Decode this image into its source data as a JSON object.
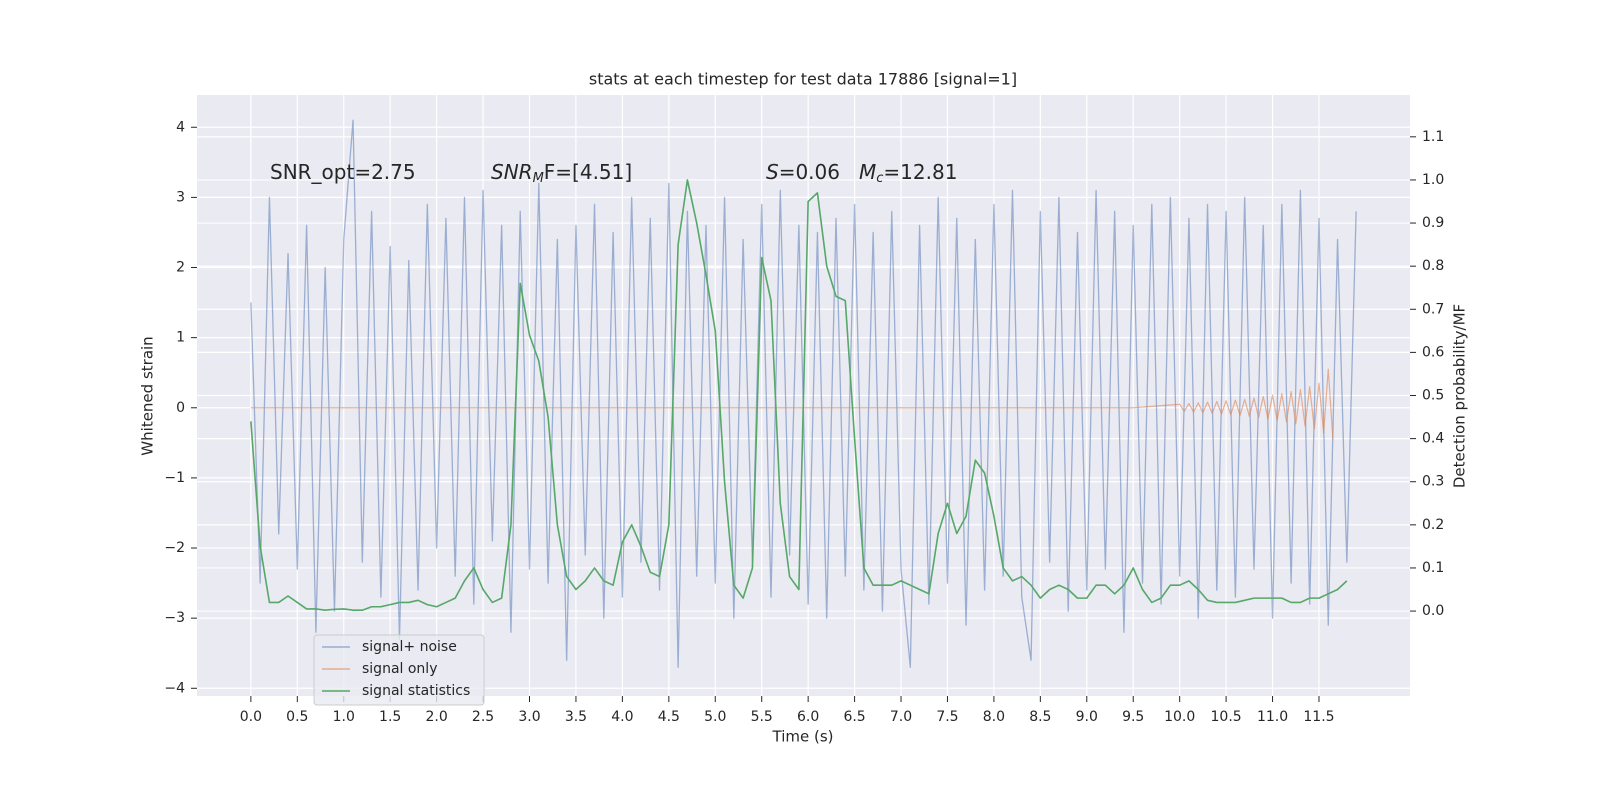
{
  "chart_data": {
    "type": "line",
    "title": "stats at each timestep for test data 17886 [signal=1]",
    "xlabel": "Time (s)",
    "ylabel": "Whitened strain",
    "y2label": "Detection probability/MF",
    "annotations": [
      {
        "main": "SNR_opt=2.75"
      },
      {
        "main": "SNR",
        "sub": "M",
        "tail": "F=[4.51]"
      },
      {
        "main": "S",
        "tail": "=0.06"
      },
      {
        "main": "M",
        "sub": "c",
        "tail": "=12.81"
      }
    ],
    "xlim": [
      -0.58,
      12.48
    ],
    "ylim": [
      -4.11,
      4.46
    ],
    "y2lim": [
      -0.197,
      1.197
    ],
    "xticks": [
      {
        "value": 0,
        "label": "0.0"
      },
      0.5,
      {
        "value": 1,
        "label": "1.0"
      },
      1.5,
      {
        "value": 2,
        "label": "2.0"
      },
      2.5,
      {
        "value": 3,
        "label": "3.0"
      },
      3.5,
      {
        "value": 4,
        "label": "4.0"
      },
      4.5,
      {
        "value": 5,
        "label": "5.0"
      },
      5.5,
      {
        "value": 6,
        "label": "6.0"
      },
      6.5,
      {
        "value": 7,
        "label": "7.0"
      },
      7.5,
      {
        "value": 8,
        "label": "8.0"
      },
      8.5,
      {
        "value": 9,
        "label": "9.0"
      },
      9.5,
      {
        "value": 10,
        "label": "10.0"
      },
      10.5,
      {
        "value": 11,
        "label": "11.0"
      },
      11.5
    ],
    "yticks": [
      {
        "value": -4,
        "label": "−4"
      },
      {
        "value": -3,
        "label": "−3"
      },
      {
        "value": -2,
        "label": "−2"
      },
      {
        "value": -1,
        "label": "−1"
      },
      0,
      1,
      2,
      3,
      4
    ],
    "y2ticks": [
      {
        "value": 0,
        "label": "0.0"
      },
      0.1,
      0.2,
      0.3,
      0.4,
      0.5,
      0.6,
      0.7,
      0.8,
      0.9,
      {
        "value": 1,
        "label": "1.0"
      },
      1.1
    ],
    "grid": true,
    "legend": "lower left",
    "series": [
      {
        "name": "signal+ noise",
        "color": "#4c72b0",
        "x": [
          0.0,
          0.1,
          0.2,
          0.3,
          0.4,
          0.5,
          0.6,
          0.7,
          0.8,
          0.9,
          1.0,
          1.1,
          1.2,
          1.3,
          1.4,
          1.5,
          1.6,
          1.7,
          1.8,
          1.9,
          2.0,
          2.1,
          2.2,
          2.3,
          2.4,
          2.5,
          2.6,
          2.7,
          2.8,
          2.9,
          3.0,
          3.1,
          3.2,
          3.3,
          3.4,
          3.5,
          3.6,
          3.7,
          3.8,
          3.9,
          4.0,
          4.1,
          4.2,
          4.3,
          4.4,
          4.5,
          4.6,
          4.7,
          4.8,
          4.9,
          5.0,
          5.1,
          5.2,
          5.3,
          5.4,
          5.5,
          5.6,
          5.7,
          5.8,
          5.9,
          6.0,
          6.1,
          6.2,
          6.3,
          6.4,
          6.5,
          6.6,
          6.7,
          6.8,
          6.9,
          7.0,
          7.1,
          7.2,
          7.3,
          7.4,
          7.5,
          7.6,
          7.7,
          7.8,
          7.9,
          8.0,
          8.1,
          8.2,
          8.3,
          8.4,
          8.5,
          8.6,
          8.7,
          8.8,
          8.9,
          9.0,
          9.1,
          9.2,
          9.3,
          9.4,
          9.5,
          9.6,
          9.7,
          9.8,
          9.9,
          10.0,
          10.1,
          10.2,
          10.3,
          10.4,
          10.5,
          10.6,
          10.7,
          10.8,
          10.9,
          11.0,
          11.1,
          11.2,
          11.3,
          11.4,
          11.5,
          11.6,
          11.7,
          11.8,
          11.9
        ],
        "values": [
          1.5,
          -2.5,
          3.0,
          -1.8,
          2.2,
          -2.3,
          2.6,
          -3.2,
          2.0,
          -2.9,
          2.4,
          4.1,
          -2.2,
          2.8,
          -2.7,
          2.3,
          -3.3,
          2.1,
          -2.6,
          2.9,
          -2.0,
          2.7,
          -2.4,
          3.0,
          -2.8,
          3.1,
          -1.9,
          2.6,
          -3.2,
          2.8,
          -2.3,
          3.2,
          -2.5,
          2.4,
          -3.6,
          2.6,
          -2.1,
          2.9,
          -3.0,
          2.5,
          -2.7,
          3.0,
          -2.2,
          2.7,
          -2.6,
          3.2,
          -3.7,
          2.8,
          -2.4,
          2.6,
          -2.5,
          3.0,
          -3.0,
          2.4,
          -2.2,
          2.9,
          -2.7,
          3.1,
          -2.1,
          2.6,
          -2.8,
          2.5,
          -3.0,
          2.7,
          -2.4,
          2.9,
          -2.6,
          2.5,
          -2.9,
          2.8,
          -2.3,
          -3.7,
          2.6,
          -2.8,
          3.0,
          -2.5,
          2.7,
          -3.1,
          2.4,
          -2.6,
          2.9,
          -2.4,
          3.1,
          -2.7,
          -3.6,
          2.8,
          -2.2,
          3.0,
          -2.9,
          2.5,
          -2.6,
          3.1,
          -2.3,
          2.8,
          -3.2,
          2.6,
          -2.5,
          2.9,
          -2.8,
          3.0,
          -2.4,
          2.7,
          -3.0,
          2.9,
          -2.6,
          2.8,
          -2.7,
          3.0,
          -2.3,
          2.6,
          -3.0,
          2.9,
          -2.5,
          3.1,
          -2.8,
          2.7,
          -3.1,
          2.4,
          -2.2,
          2.8
        ]
      },
      {
        "name": "signal only",
        "color": "#dd8452",
        "x": [
          0,
          9.0,
          9.5,
          10.0,
          10.05,
          10.1,
          10.15,
          10.2,
          10.25,
          10.3,
          10.35,
          10.4,
          10.45,
          10.5,
          10.55,
          10.6,
          10.65,
          10.7,
          10.75,
          10.8,
          10.85,
          10.9,
          10.95,
          11.0,
          11.05,
          11.1,
          11.15,
          11.2,
          11.25,
          11.3,
          11.35,
          11.4,
          11.45,
          11.5,
          11.55,
          11.6,
          11.65
        ],
        "values": [
          0,
          0,
          0,
          0.05,
          -0.05,
          0.06,
          -0.06,
          0.07,
          -0.07,
          0.08,
          -0.08,
          0.09,
          -0.09,
          0.1,
          -0.1,
          0.11,
          -0.11,
          0.12,
          -0.12,
          0.14,
          -0.14,
          0.16,
          -0.16,
          0.18,
          -0.18,
          0.2,
          -0.2,
          0.23,
          -0.23,
          0.26,
          -0.26,
          0.3,
          -0.3,
          0.35,
          -0.36,
          0.55,
          -0.45
        ]
      },
      {
        "name": "signal statistics",
        "color": "#55a868",
        "axis": "y2",
        "x": [
          0.0,
          0.1,
          0.2,
          0.3,
          0.4,
          0.5,
          0.6,
          0.7,
          0.8,
          0.9,
          1.0,
          1.1,
          1.2,
          1.3,
          1.4,
          1.5,
          1.6,
          1.7,
          1.8,
          1.9,
          2.0,
          2.1,
          2.2,
          2.3,
          2.4,
          2.5,
          2.6,
          2.7,
          2.8,
          2.9,
          3.0,
          3.1,
          3.2,
          3.3,
          3.4,
          3.5,
          3.6,
          3.7,
          3.8,
          3.9,
          4.0,
          4.1,
          4.2,
          4.3,
          4.4,
          4.5,
          4.6,
          4.7,
          4.8,
          4.9,
          5.0,
          5.1,
          5.2,
          5.3,
          5.4,
          5.5,
          5.6,
          5.7,
          5.8,
          5.9,
          6.0,
          6.1,
          6.2,
          6.3,
          6.4,
          6.5,
          6.6,
          6.7,
          6.8,
          6.9,
          7.0,
          7.1,
          7.2,
          7.3,
          7.4,
          7.5,
          7.6,
          7.7,
          7.8,
          7.9,
          8.0,
          8.1,
          8.2,
          8.3,
          8.4,
          8.5,
          8.6,
          8.7,
          8.8,
          8.9,
          9.0,
          9.1,
          9.2,
          9.3,
          9.4,
          9.5,
          9.6,
          9.7,
          9.8,
          9.9,
          10.0,
          10.1,
          10.2,
          10.3,
          10.4,
          10.5,
          10.6,
          10.7,
          10.8,
          10.9,
          11.0,
          11.1,
          11.2,
          11.3,
          11.4,
          11.5,
          11.6,
          11.7,
          11.8
        ],
        "values": [
          0.44,
          0.15,
          0.02,
          0.02,
          0.035,
          0.02,
          0.005,
          0.005,
          0.002,
          0.004,
          0.005,
          0.002,
          0.002,
          0.01,
          0.01,
          0.015,
          0.02,
          0.02,
          0.025,
          0.015,
          0.01,
          0.02,
          0.03,
          0.07,
          0.1,
          0.05,
          0.02,
          0.03,
          0.2,
          0.76,
          0.64,
          0.58,
          0.45,
          0.2,
          0.08,
          0.05,
          0.07,
          0.1,
          0.07,
          0.06,
          0.16,
          0.2,
          0.15,
          0.09,
          0.08,
          0.2,
          0.85,
          1.0,
          0.9,
          0.78,
          0.65,
          0.3,
          0.06,
          0.03,
          0.1,
          0.82,
          0.72,
          0.25,
          0.08,
          0.05,
          0.95,
          0.97,
          0.8,
          0.73,
          0.72,
          0.4,
          0.1,
          0.06,
          0.06,
          0.06,
          0.07,
          0.06,
          0.05,
          0.04,
          0.18,
          0.25,
          0.18,
          0.22,
          0.35,
          0.32,
          0.22,
          0.1,
          0.07,
          0.08,
          0.06,
          0.03,
          0.05,
          0.06,
          0.05,
          0.03,
          0.03,
          0.06,
          0.06,
          0.04,
          0.06,
          0.1,
          0.05,
          0.02,
          0.03,
          0.06,
          0.06,
          0.07,
          0.05,
          0.025,
          0.02,
          0.02,
          0.02,
          0.025,
          0.03,
          0.03,
          0.03,
          0.03,
          0.02,
          0.02,
          0.03,
          0.03,
          0.04,
          0.05,
          0.07
        ]
      }
    ]
  }
}
